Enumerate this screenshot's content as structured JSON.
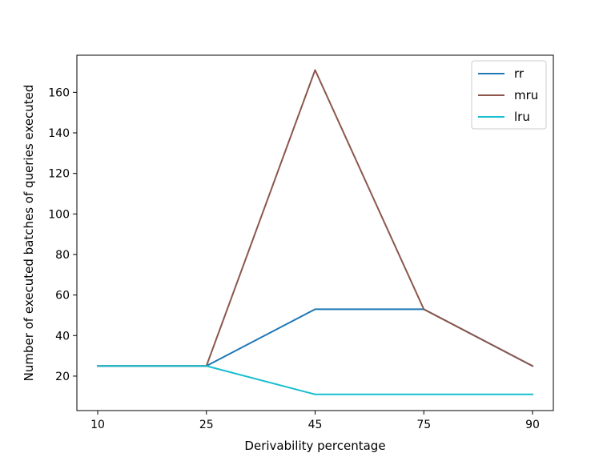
{
  "chart_data": {
    "type": "line",
    "categories": [
      "10",
      "25",
      "45",
      "75",
      "90"
    ],
    "series": [
      {
        "name": "rr",
        "color": "#1f77b4",
        "values": [
          25,
          25,
          53,
          53,
          25
        ]
      },
      {
        "name": "mru",
        "color": "#8c564b",
        "values": [
          25,
          25,
          171,
          53,
          25
        ]
      },
      {
        "name": "lru",
        "color": "#17becf",
        "values": [
          25,
          25,
          11,
          11,
          11
        ]
      }
    ],
    "xlabel": "Derivability percentage",
    "ylabel": "Number of executed batches of queries executed",
    "ylim": [
      3.0,
      178.3
    ],
    "yticks": [
      20,
      40,
      60,
      80,
      100,
      120,
      140,
      160
    ],
    "grid": false,
    "legend_position": "top-right"
  }
}
